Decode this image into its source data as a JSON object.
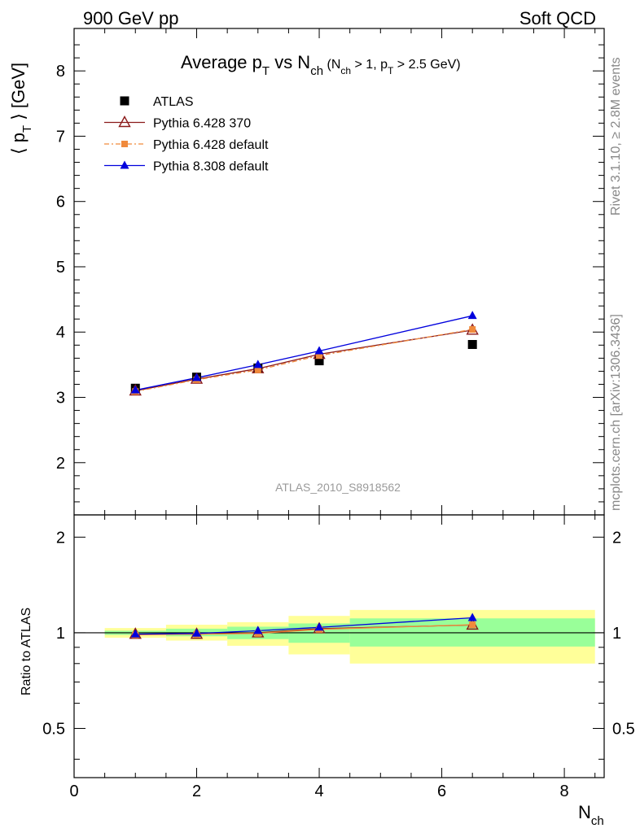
{
  "header": {
    "left": "900 GeV pp",
    "right": "Soft QCD"
  },
  "side_labels": {
    "rivet": "Rivet 3.1.10, ≥ 2.8M events",
    "source": "mcplots.cern.ch [arXiv:1306.3436]"
  },
  "chart_data": [
    {
      "type": "scatter",
      "panel": "main",
      "title": "Average p_T vs N_ch (N_ch > 1, p_T > 2.5 GeV)",
      "ylabel": "⟨ p_T ⟩ [GeV]",
      "xlim": [
        0,
        8.65
      ],
      "ylim": [
        1.2,
        8.65
      ],
      "y_ticks": [
        2,
        3,
        4,
        5,
        6,
        7,
        8
      ],
      "watermark": "ATLAS_2010_S8918562",
      "legend_position": "top-left",
      "series": [
        {
          "name": "ATLAS",
          "color": "#000000",
          "marker": "square",
          "x": [
            1,
            2,
            3,
            4,
            6.5
          ],
          "y": [
            3.14,
            3.31,
            3.45,
            3.56,
            3.81
          ]
        },
        {
          "name": "Pythia 6.428 370",
          "color": "#8b1a1a",
          "marker": "triangle-open",
          "line": "solid",
          "x": [
            1,
            2,
            3,
            4,
            6.5
          ],
          "y": [
            3.1,
            3.28,
            3.44,
            3.66,
            4.03
          ]
        },
        {
          "name": "Pythia 6.428 default",
          "color": "#f08a3c",
          "marker": "square-small",
          "line": "dashdot",
          "x": [
            1,
            2,
            3,
            4,
            6.5
          ],
          "y": [
            3.09,
            3.27,
            3.42,
            3.64,
            4.04
          ]
        },
        {
          "name": "Pythia 8.308 default",
          "color": "#0000dd",
          "marker": "triangle",
          "line": "solid",
          "x": [
            1,
            2,
            3,
            4,
            6.5
          ],
          "y": [
            3.11,
            3.3,
            3.5,
            3.71,
            4.25
          ]
        }
      ]
    },
    {
      "type": "scatter",
      "panel": "ratio",
      "ylabel": "Ratio to ATLAS",
      "xlabel": "N_ch",
      "xlim": [
        0,
        8.65
      ],
      "ylim": [
        0.35,
        2.35
      ],
      "y_scale": "log",
      "y_ticks": [
        0.5,
        1,
        2
      ],
      "x_ticks": [
        0,
        2,
        4,
        6,
        8
      ],
      "bands": [
        {
          "x": [
            0.5,
            1.5
          ],
          "green": [
            0.985,
            1.015
          ],
          "yellow": [
            0.965,
            1.035
          ]
        },
        {
          "x": [
            1.5,
            2.5
          ],
          "green": [
            0.975,
            1.03
          ],
          "yellow": [
            0.945,
            1.06
          ]
        },
        {
          "x": [
            2.5,
            3.5
          ],
          "green": [
            0.955,
            1.045
          ],
          "yellow": [
            0.91,
            1.08
          ]
        },
        {
          "x": [
            3.5,
            4.5
          ],
          "green": [
            0.93,
            1.07
          ],
          "yellow": [
            0.855,
            1.13
          ]
        },
        {
          "x": [
            4.5,
            8.5
          ],
          "green": [
            0.905,
            1.11
          ],
          "yellow": [
            0.8,
            1.18
          ]
        }
      ],
      "series": [
        {
          "name": "Pythia 6.428 370",
          "color": "#8b1a1a",
          "marker": "triangle-open",
          "x": [
            1,
            2,
            3,
            4,
            6.5
          ],
          "y": [
            0.99,
            0.99,
            1.0,
            1.03,
            1.058
          ]
        },
        {
          "name": "Pythia 6.428 default",
          "color": "#f08a3c",
          "marker": "square-small",
          "x": [
            1,
            2,
            3,
            4,
            6.5
          ],
          "y": [
            0.985,
            0.99,
            0.995,
            1.025,
            1.06
          ]
        },
        {
          "name": "Pythia 8.308 default",
          "color": "#0000dd",
          "marker": "triangle",
          "x": [
            1,
            2,
            3,
            4,
            6.5
          ],
          "y": [
            0.99,
            0.995,
            1.015,
            1.04,
            1.115
          ]
        }
      ]
    }
  ]
}
